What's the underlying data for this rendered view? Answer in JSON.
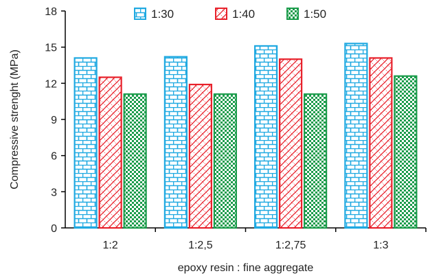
{
  "chart_data": {
    "type": "bar",
    "title": "",
    "xlabel": "epoxy resin : fine aggregate",
    "ylabel": "Compressive strenght (MPa)",
    "ylim": [
      0,
      18
    ],
    "yticks": [
      0,
      3,
      6,
      9,
      12,
      15,
      18
    ],
    "categories": [
      "1:2",
      "1:2,5",
      "1:2,75",
      "1:3"
    ],
    "series": [
      {
        "name": "1:30",
        "values": [
          14.1,
          14.2,
          15.1,
          15.3
        ],
        "color": "#1fa9e1",
        "pattern": "brick"
      },
      {
        "name": "1:40",
        "values": [
          12.5,
          11.9,
          14.0,
          14.1
        ],
        "color": "#e8202a",
        "pattern": "diagonal-lattice"
      },
      {
        "name": "1:50",
        "values": [
          11.1,
          11.1,
          11.1,
          12.6
        ],
        "color": "#1a9b4a",
        "pattern": "dotted-grid"
      }
    ],
    "legend_position": "top",
    "grid": false
  }
}
